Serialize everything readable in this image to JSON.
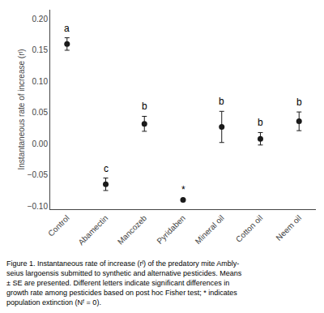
{
  "chart_data": {
    "type": "scatter",
    "categories": [
      "Control",
      "Abamectin",
      "Mancozeb",
      "Pyridaben",
      "Mineral oil",
      "Cotton oil",
      "Neem oil"
    ],
    "values": [
      0.16,
      -0.065,
      0.032,
      -0.09,
      0.027,
      0.008,
      0.036
    ],
    "errors": [
      0.01,
      0.01,
      0.012,
      0,
      0.025,
      0.01,
      0.015
    ],
    "color": "#1a1a1a",
    "marker": "circle",
    "ylabel": "Instantaneous rate of increase (rᴵ)",
    "ylim": [
      -0.105,
      0.215
    ],
    "yticks": [
      {
        "value": -0.1,
        "label": "−0.10"
      },
      {
        "value": -0.05,
        "label": "−0.05"
      },
      {
        "value": 0.0,
        "label": "0.00"
      },
      {
        "value": 0.05,
        "label": "0.05"
      },
      {
        "value": 0.1,
        "label": "0.10"
      },
      {
        "value": 0.15,
        "label": "0.15"
      },
      {
        "value": 0.2,
        "label": "0.20"
      }
    ],
    "grid": false,
    "annotations": [
      {
        "category": "Control",
        "text": "a"
      },
      {
        "category": "Abamectin",
        "text": "c"
      },
      {
        "category": "Mancozeb",
        "text": "b"
      },
      {
        "category": "Pyridaben",
        "text": "*"
      },
      {
        "category": "Mineral oil",
        "text": "b"
      },
      {
        "category": "Cotton oil",
        "text": "b"
      },
      {
        "category": "Neem oil",
        "text": "b"
      }
    ],
    "caption": [
      "Figure 1. Instantaneous rate of increase (rᴵ) of the predatory mite ⁠Ambly-",
      "seius largoensis submitted to synthetic and alternative pesticides. Means",
      "± SE are presented. Different letters indicate significant differences in",
      "growth rate among pesticides based on post hoc Fisher test; * indicates",
      "population extinction (Nᶠ = 0)."
    ]
  }
}
